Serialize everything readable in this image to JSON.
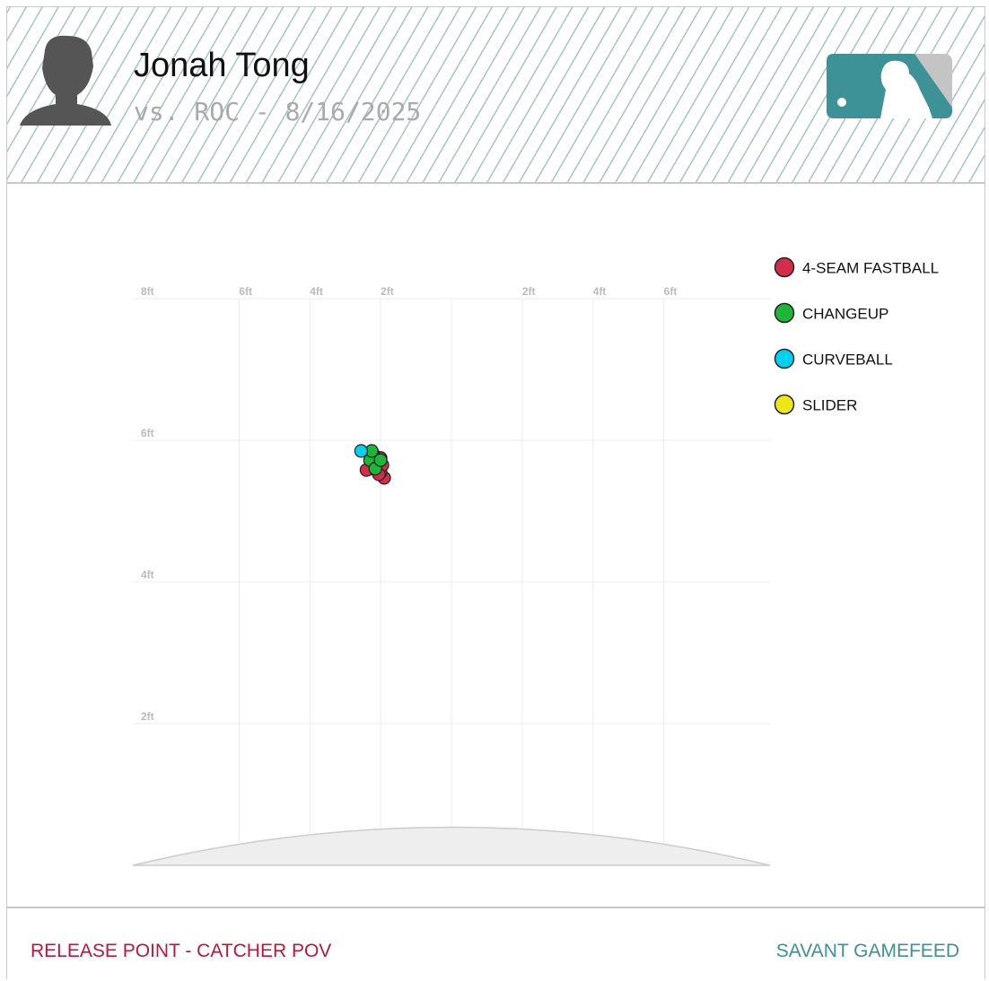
{
  "header": {
    "title": "Jonah Tong",
    "subtitle": "vs. ROC - 8/16/2025"
  },
  "chart_data": {
    "type": "scatter",
    "xlim": [
      -9,
      9
    ],
    "ylim": [
      0,
      8
    ],
    "xticks": [
      {
        "value": -6,
        "label": "6ft"
      },
      {
        "value": -4,
        "label": "4ft"
      },
      {
        "value": -2,
        "label": "2ft"
      },
      {
        "value": 2,
        "label": "2ft"
      },
      {
        "value": 4,
        "label": "4ft"
      },
      {
        "value": 6,
        "label": "6ft"
      }
    ],
    "yticks": [
      {
        "value": 2,
        "label": "2ft"
      },
      {
        "value": 4,
        "label": "4ft"
      },
      {
        "value": 6,
        "label": "6ft"
      },
      {
        "value": 8,
        "label": "8ft"
      }
    ],
    "grid": true,
    "legend": "right",
    "series": [
      {
        "name": "4-SEAM FASTBALL",
        "color": "#d22d49",
        "x": [
          -1.9,
          -2.0,
          -2.1,
          -2.3,
          -2.4,
          -2.15,
          -2.0,
          -1.95,
          -2.2,
          -2.05
        ],
        "values": [
          5.47,
          5.55,
          5.62,
          5.6,
          5.58,
          5.7,
          5.75,
          5.65,
          5.8,
          5.52
        ]
      },
      {
        "name": "CHANGEUP",
        "color": "#1db53a",
        "x": [
          -2.2,
          -2.1,
          -2.3,
          -2.15,
          -2.25,
          -2.0
        ],
        "values": [
          5.78,
          5.68,
          5.72,
          5.6,
          5.85,
          5.72
        ]
      },
      {
        "name": "CURVEBALL",
        "color": "#00d1ed",
        "x": [
          -2.55
        ],
        "values": [
          5.85
        ]
      },
      {
        "name": "SLIDER",
        "color": "#eee716",
        "x": [],
        "values": []
      }
    ]
  },
  "footer": {
    "left": "RELEASE POINT - CATCHER POV",
    "right": "SAVANT GAMEFEED"
  }
}
